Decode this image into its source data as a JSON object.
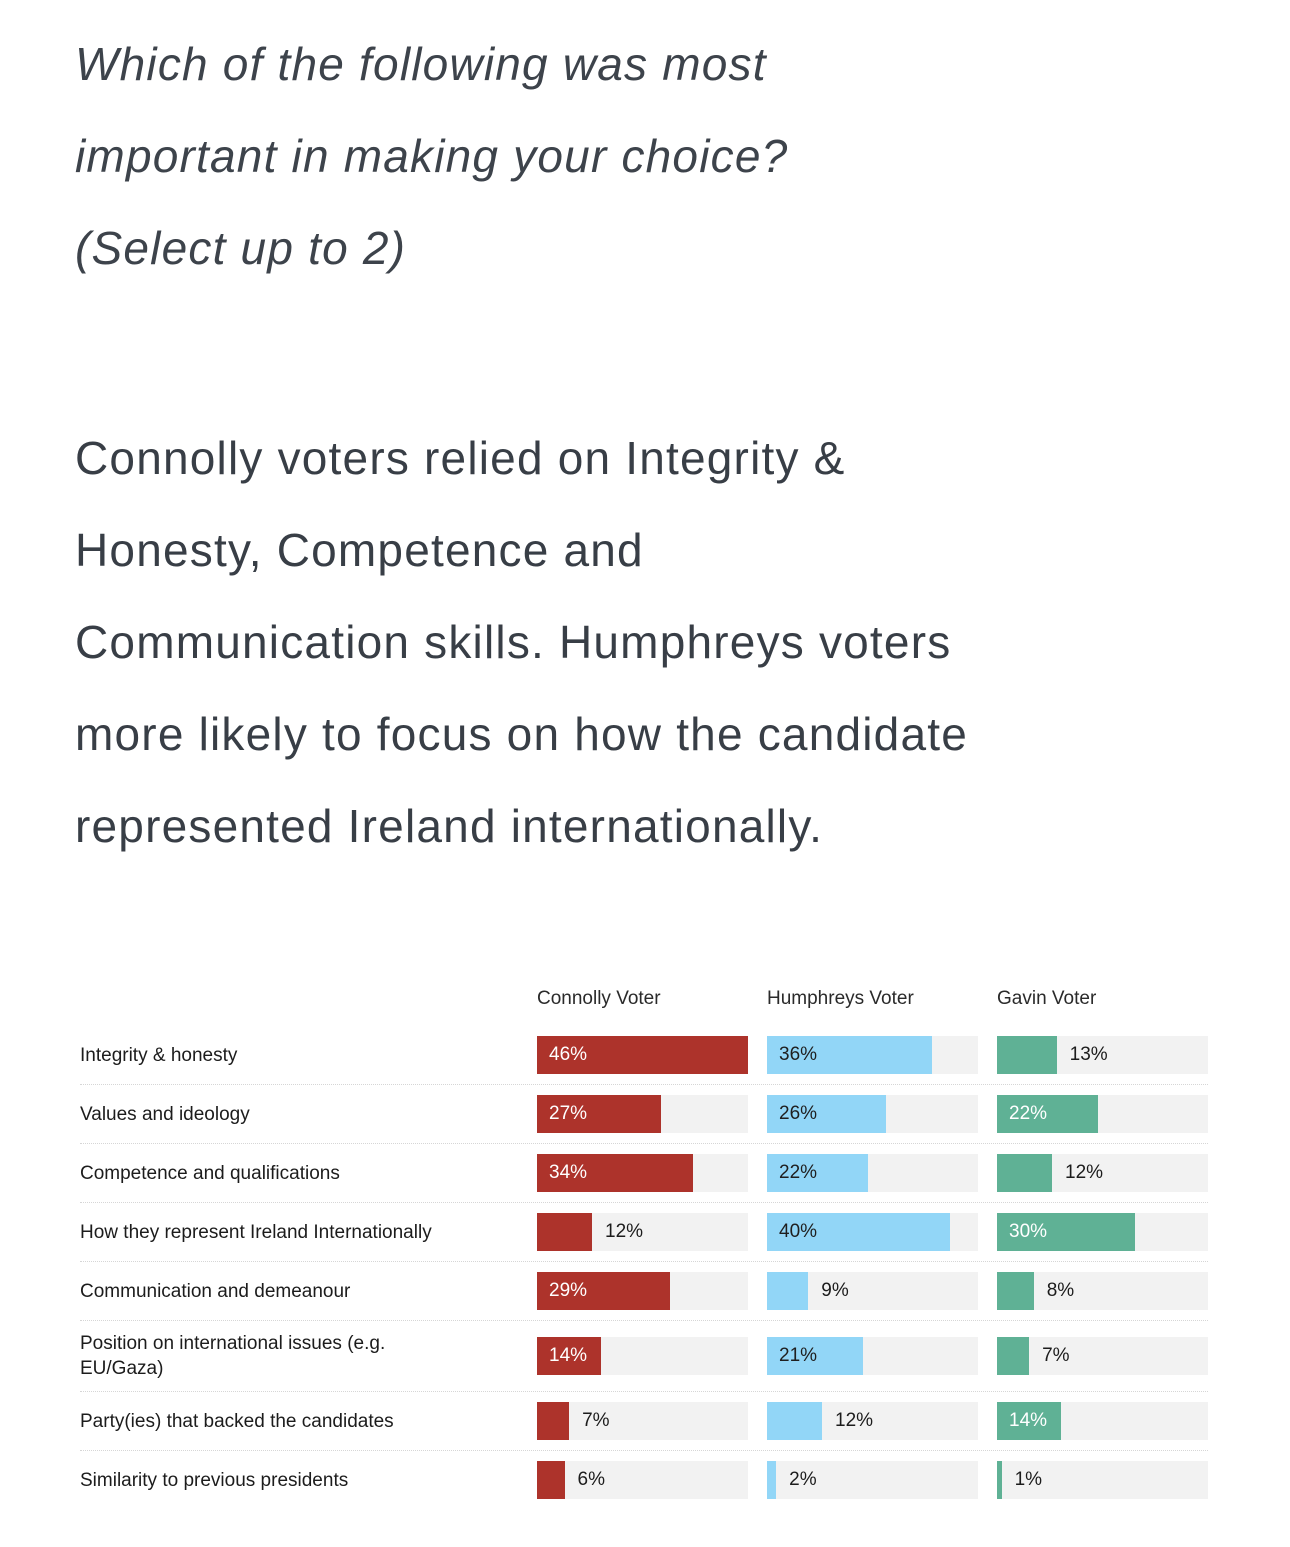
{
  "heading": {
    "lines": [
      "Which of the following was most",
      "important in making your choice?",
      "(Select up to 2)"
    ]
  },
  "paragraph": {
    "lines": [
      "Connolly voters relied on Integrity &",
      "Honesty, Competence and",
      "Communication skills. Humphreys voters",
      "more likely to focus on how the candidate",
      "represented Ireland internationally."
    ]
  },
  "chart_data": {
    "type": "bar",
    "orientation": "horizontal",
    "value_suffix": "%",
    "scale_max": 46,
    "inside_label_min_value": 14,
    "track_color": "#f2f2f2",
    "outside_label_color": "#1c1c1c",
    "columns": [
      {
        "label": "Connolly Voter",
        "color": "#ad332b",
        "label_in_bar_color": "#ffffff"
      },
      {
        "label": "Humphreys Voter",
        "color": "#92d6f7",
        "label_in_bar_color": "#1f1f1f"
      },
      {
        "label": "Gavin Voter",
        "color": "#5fb195",
        "label_in_bar_color": "#ffffff"
      }
    ],
    "categories": [
      "Integrity & honesty",
      "Values and ideology",
      "Competence and qualifications",
      "How they represent Ireland Internationally",
      "Communication and demeanour",
      "Position on international issues (e.g.\nEU/Gaza)",
      "Party(ies) that backed the candidates",
      "Similarity to previous presidents"
    ],
    "series": [
      {
        "name": "Connolly Voter",
        "values": [
          46,
          27,
          34,
          12,
          29,
          14,
          7,
          6
        ]
      },
      {
        "name": "Humphreys Voter",
        "values": [
          36,
          26,
          22,
          40,
          9,
          21,
          12,
          2
        ]
      },
      {
        "name": "Gavin Voter",
        "values": [
          13,
          22,
          12,
          30,
          8,
          7,
          14,
          1
        ]
      }
    ]
  }
}
